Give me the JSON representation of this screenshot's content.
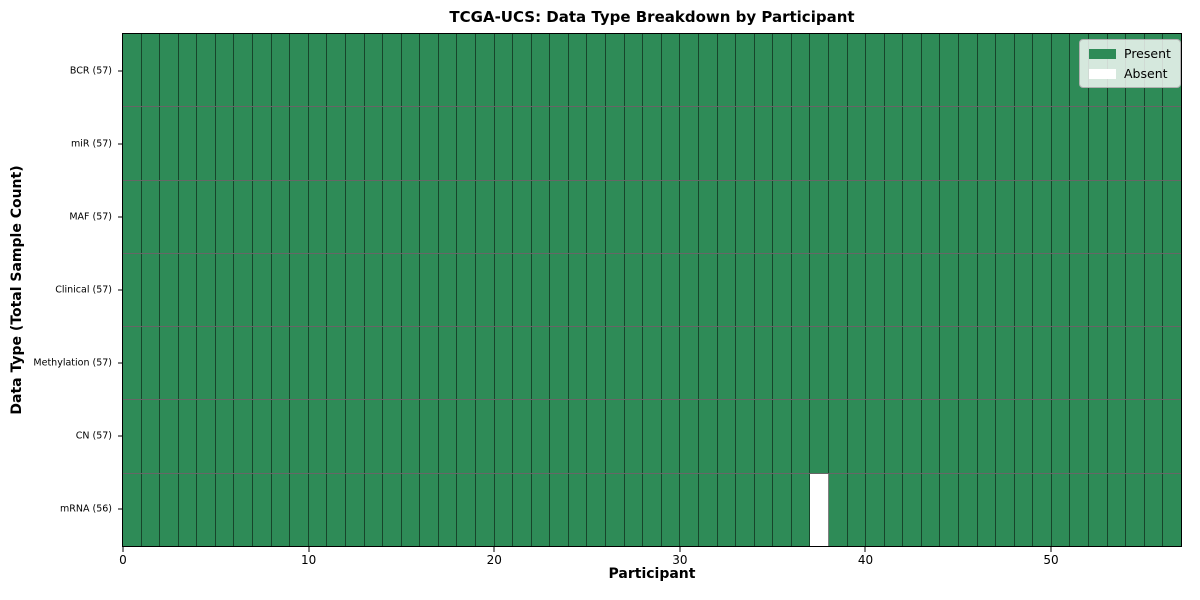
{
  "chart_data": {
    "type": "heatmap",
    "title": "TCGA-UCS: Data Type Breakdown by Participant",
    "xlabel": "Participant",
    "ylabel": "Data Type (Total Sample Count)",
    "n_participants": 57,
    "x_axis_range": [
      0,
      57
    ],
    "x_ticks": [
      0,
      10,
      20,
      30,
      40,
      50
    ],
    "rows": [
      {
        "label": "BCR (57)",
        "data_type": "BCR",
        "sample_count": 57,
        "absent_participants": []
      },
      {
        "label": "miR (57)",
        "data_type": "miR",
        "sample_count": 57,
        "absent_participants": []
      },
      {
        "label": "MAF (57)",
        "data_type": "MAF",
        "sample_count": 57,
        "absent_participants": []
      },
      {
        "label": "Clinical (57)",
        "data_type": "Clinical",
        "sample_count": 57,
        "absent_participants": []
      },
      {
        "label": "Methylation (57)",
        "data_type": "Methylation",
        "sample_count": 57,
        "absent_participants": []
      },
      {
        "label": "CN (57)",
        "data_type": "CN",
        "sample_count": 57,
        "absent_participants": []
      },
      {
        "label": "mRNA (56)",
        "data_type": "mRNA",
        "sample_count": 56,
        "absent_participants": [
          37
        ]
      }
    ],
    "legend": [
      {
        "label": "Present",
        "color": "#2E8B57"
      },
      {
        "label": "Absent",
        "color": "#ffffff"
      }
    ],
    "colors": {
      "present": "#2E8B57",
      "absent": "#ffffff",
      "cell_edge": "rgba(0,0,0,0.5)",
      "spine": "#000000"
    },
    "legend_position": "upper right",
    "grid": "cell-edges"
  }
}
